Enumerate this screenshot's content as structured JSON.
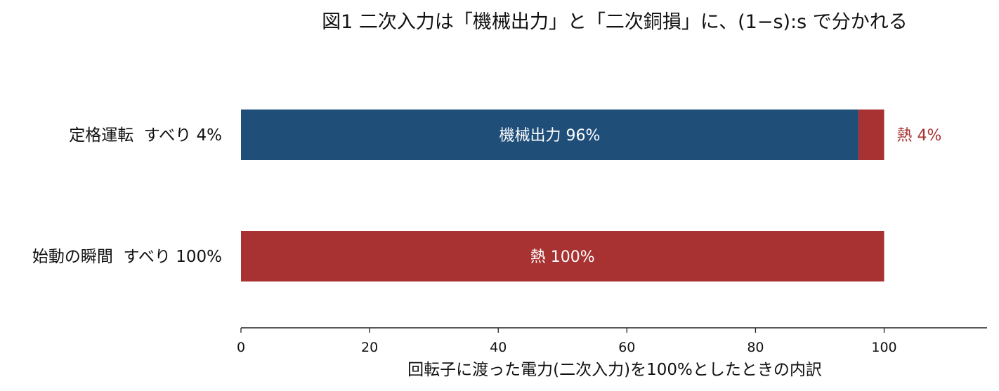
{
  "chart_data": {
    "type": "bar",
    "orientation": "horizontal",
    "stacked": true,
    "title": "図1 二次入力は「機械出力」と「二次銅損」に、(1−s):s で分かれる",
    "xlabel": "回転子に渡った電力(二次入力)を100%としたときの内訳",
    "ylabel": "",
    "xlim": [
      0,
      116
    ],
    "xticks": [
      "0",
      "20",
      "40",
      "60",
      "80",
      "100"
    ],
    "grid": false,
    "categories": [
      "定格運転  すべり 4%",
      "始動の瞬間  すべり 100%"
    ],
    "series": [
      {
        "values": [
          96,
          0
        ],
        "color": "#1f4e79"
      },
      {
        "values": [
          4,
          100
        ],
        "color": "#a83232"
      }
    ],
    "annotations": {
      "rated_mechanical": "機械出力 96%",
      "rated_heat": "熱 4%",
      "start_heat": "熱 100%"
    }
  }
}
